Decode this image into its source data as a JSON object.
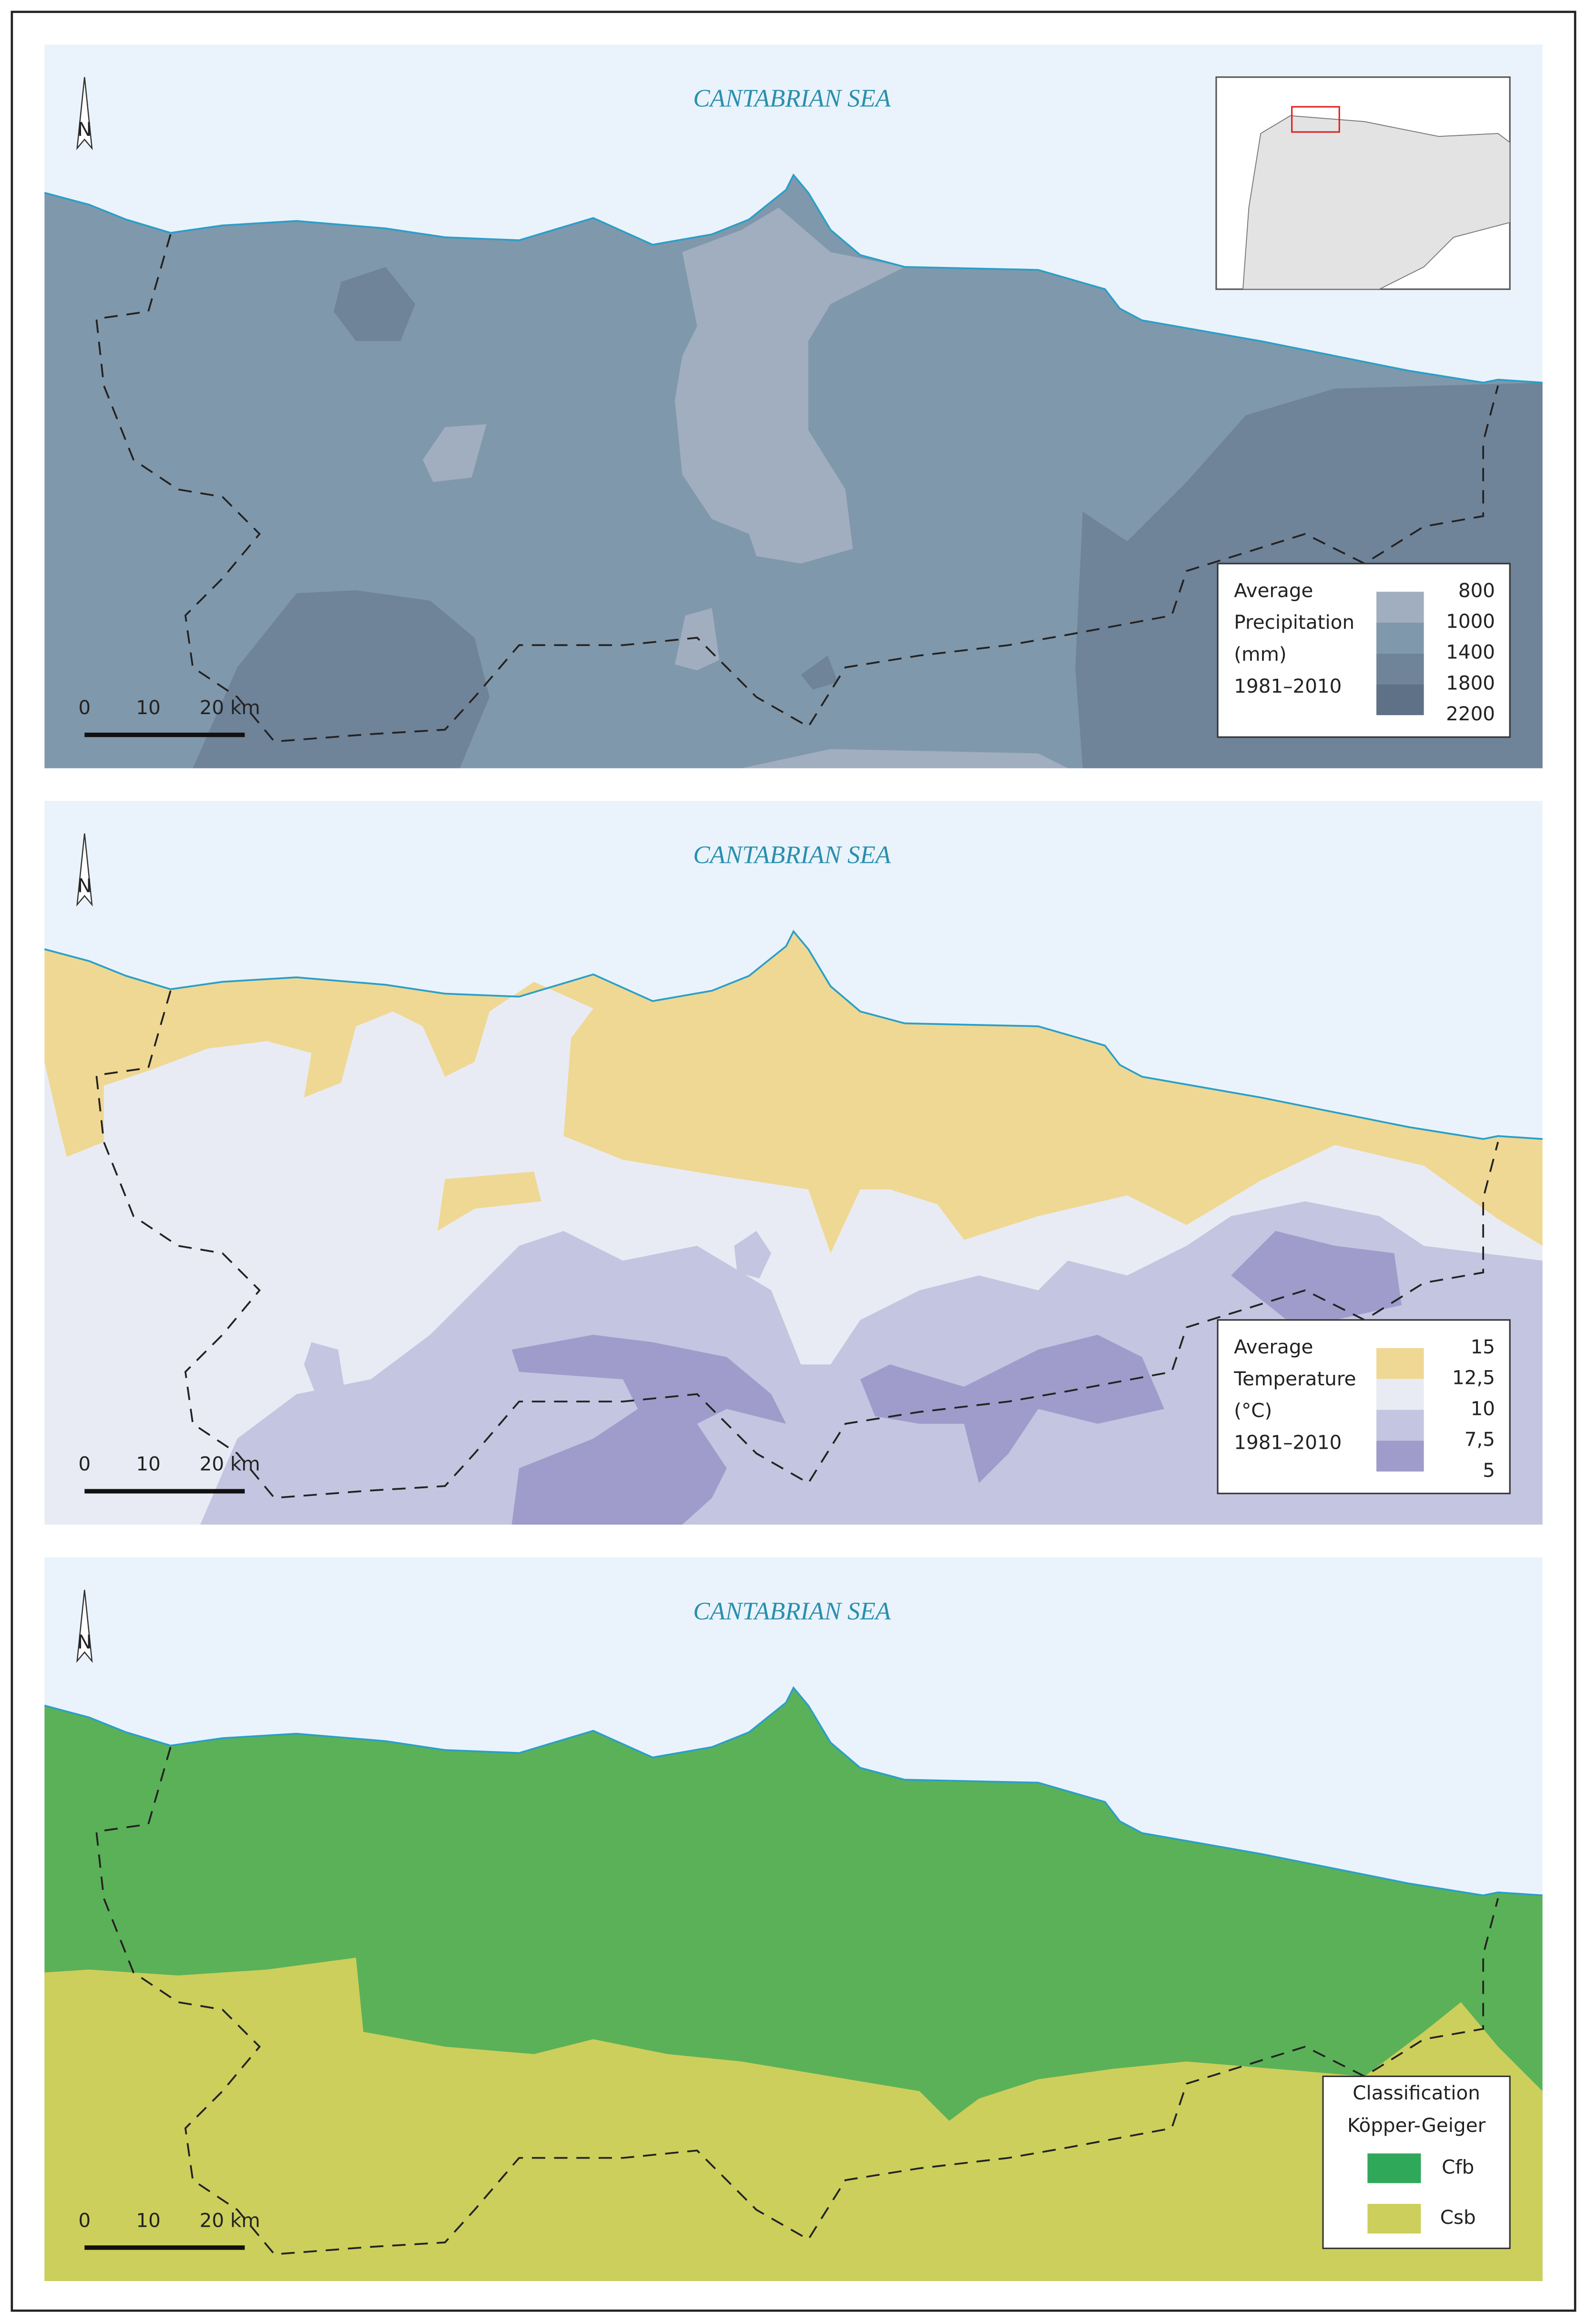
{
  "panels": [
    {
      "sea_label": "CANTABRIAN SEA",
      "north": "N",
      "scale": [
        "0",
        "10",
        "20 km"
      ],
      "legend": {
        "title": [
          "Average",
          "Precipitation",
          "(mm)",
          "1981–2010"
        ],
        "labels": [
          "800",
          "1000",
          "1400",
          "1800",
          "2200"
        ]
      }
    },
    {
      "sea_label": "CANTABRIAN SEA",
      "north": "N",
      "scale": [
        "0",
        "10",
        "20 km"
      ],
      "legend": {
        "title": [
          "Average",
          "Temperature",
          "(°C)",
          "1981–2010"
        ],
        "labels": [
          "15",
          "12,5",
          "10",
          "7,5",
          "5"
        ]
      }
    },
    {
      "sea_label": "CANTABRIAN SEA",
      "north": "N",
      "scale": [
        "0",
        "10",
        "20 km"
      ],
      "legend": {
        "title": [
          "Classification",
          "Köpper-Geiger"
        ],
        "labels": [
          "Cfb",
          "Csb"
        ]
      }
    }
  ]
}
